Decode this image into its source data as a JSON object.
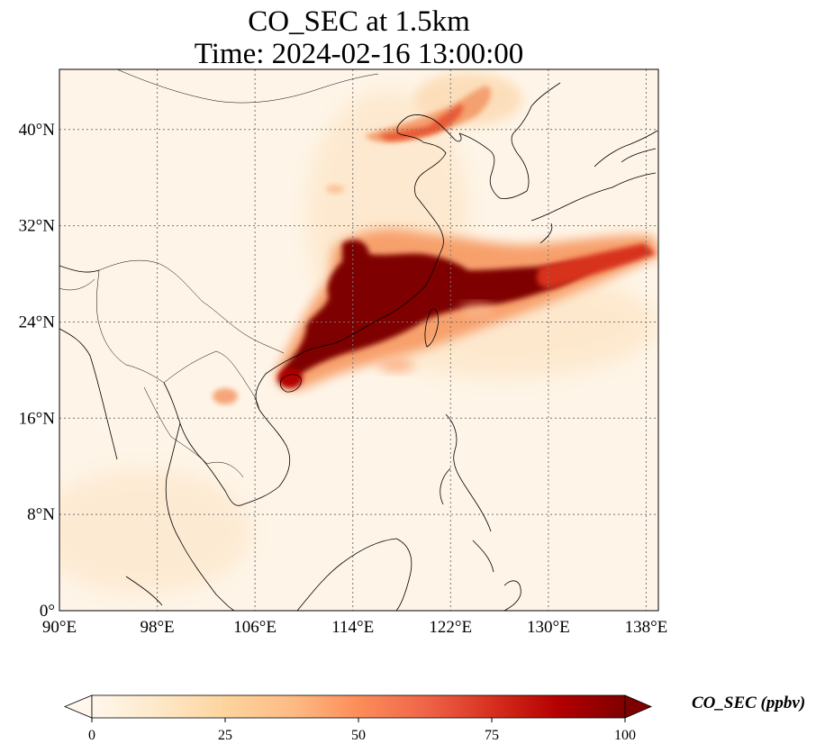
{
  "title": {
    "line1": "CO_SEC at 1.5km",
    "line2": "Time: 2024-02-16 13:00:00"
  },
  "map": {
    "projection": "PlateCarree",
    "lon_range": [
      90,
      139
    ],
    "lat_range": [
      0,
      45
    ],
    "gridlines": "dotted",
    "lon_ticks": [
      "90°E",
      "98°E",
      "106°E",
      "114°E",
      "122°E",
      "130°E",
      "138°E"
    ],
    "lat_ticks": [
      "0°",
      "8°N",
      "16°N",
      "24°N",
      "32°N",
      "40°N"
    ],
    "field": "CO_SEC",
    "notable_features": [
      "Intense plume (>100 ppbv) over southeastern China coast extending east past Taiwan toward 135°E near 26-30°N",
      "Moderate plume over northeast China / Korea Bay near 40-43°N",
      "Weak enhancement over northern Laos / Vietnam near 19°N"
    ]
  },
  "colorbar": {
    "label": "CO_SEC (ppbv)",
    "colormap": "OrRd",
    "range": [
      0,
      100
    ],
    "ticks": [
      "0",
      "25",
      "50",
      "75",
      "100"
    ],
    "extend": "both",
    "colors": [
      "#fff7ec",
      "#fee8c8",
      "#fdd49e",
      "#fdbb84",
      "#fc8d59",
      "#ef6548",
      "#d7301f",
      "#b30000",
      "#7f0000"
    ]
  }
}
